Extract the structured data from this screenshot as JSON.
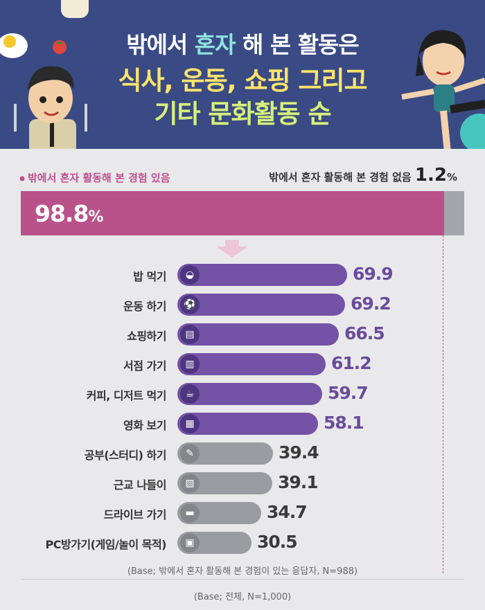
{
  "header": {
    "line1_a": "밖에서 ",
    "line1_b": "혼자",
    "line1_c": " 해 본 활동은",
    "line2": "식사, 운동, 쇼핑 그리고",
    "line3": "기타 문화활동 순"
  },
  "split": {
    "yes_label": "밖에서 혼자 활동해 본 경험 있음",
    "no_label": "밖에서 혼자 활동해 본 경험 없음",
    "yes_value": "98.8",
    "no_value": "1.2",
    "pct": "%",
    "yes_fraction": 0.988,
    "no_fraction": 0.012,
    "yes_color": "#b9528a",
    "no_color": "#a4a6ab"
  },
  "chart_data": {
    "type": "bar",
    "orientation": "horizontal",
    "categories": [
      "밥 먹기",
      "운동 하기",
      "쇼핑하기",
      "서점 가기",
      "커피, 디저트 먹기",
      "영화 보기",
      "공부(스터디) 하기",
      "근교 나들이",
      "드라이브 가기",
      "PC방가기(게임/놀이 목적)"
    ],
    "values": [
      69.9,
      69.2,
      66.5,
      61.2,
      59.7,
      58.1,
      39.4,
      39.1,
      34.7,
      30.5
    ],
    "value_labels": [
      "69.9",
      "69.2",
      "66.5",
      "61.2",
      "59.7",
      "58.1",
      "39.4",
      "39.1",
      "34.7",
      "30.5"
    ],
    "icons": [
      "rice-bowl-icon",
      "soccer-ball-icon",
      "shopping-basket-icon",
      "book-icon",
      "coffee-cup-icon",
      "clapperboard-icon",
      "pencil-icon",
      "picnic-basket-icon",
      "car-icon",
      "monitor-icon"
    ],
    "colors": {
      "top": "#7452a6",
      "bottom": "#9b9ba2",
      "top_text": "#6a4b9d",
      "bottom_text": "#3a3a3a"
    },
    "highlight_count": 6,
    "ylim": [
      0,
      100
    ]
  },
  "notes": {
    "base1": "(Base; 밖에서 혼자 활동해 본 경험이 있는 응답자, N=988)",
    "base2": "(Base; 전체, N=1,000)"
  }
}
